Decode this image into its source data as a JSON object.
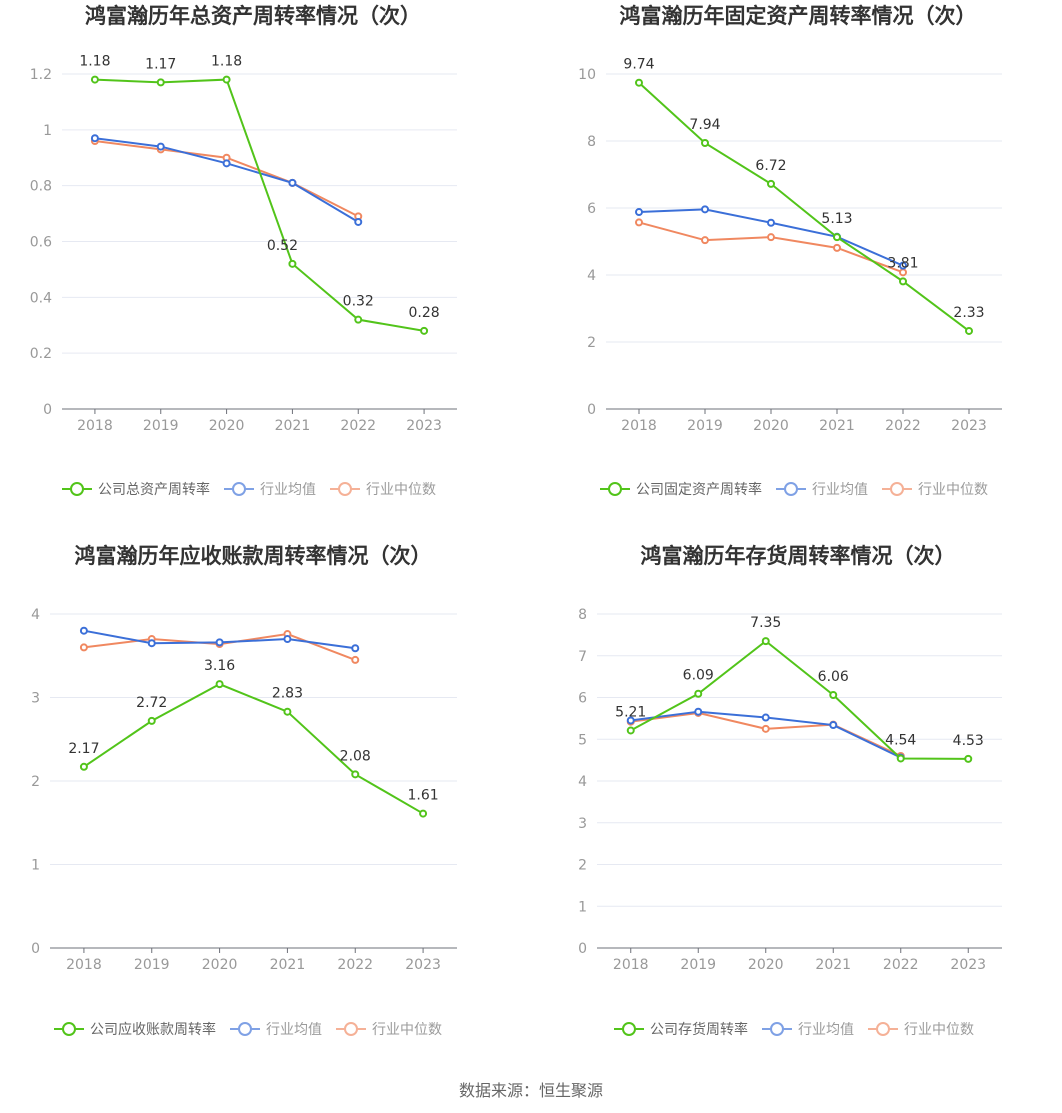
{
  "source": "数据来源：恒生聚源",
  "legend_common": [
    "行业均值",
    "行业中位数"
  ],
  "colors": {
    "company": "#52c41a",
    "avg": "#3b6fd8",
    "median": "#f08860",
    "grid": "#e6e9f2",
    "axis": "#6e7079"
  },
  "chart_data": [
    {
      "type": "line",
      "title": "鸿富瀚历年总资产周转率情况（次）",
      "x": [
        "2018",
        "2019",
        "2020",
        "2021",
        "2022",
        "2023"
      ],
      "yticks": [
        "0",
        "0.2",
        "0.4",
        "0.6",
        "0.8",
        "1",
        "1.2"
      ],
      "ylim": [
        0,
        1.2
      ],
      "series": [
        {
          "name": "公司总资产周转率",
          "role": "company",
          "values": [
            1.18,
            1.17,
            1.18,
            0.52,
            0.32,
            0.28
          ],
          "labels": [
            "1.18",
            "1.17",
            "1.18",
            "0.52",
            "0.32",
            "0.28"
          ]
        },
        {
          "name": "行业均值",
          "role": "avg",
          "values": [
            0.97,
            0.94,
            0.88,
            0.81,
            0.67,
            null
          ]
        },
        {
          "name": "行业中位数",
          "role": "median",
          "values": [
            0.96,
            0.93,
            0.9,
            0.81,
            0.69,
            null
          ]
        }
      ],
      "legend": "bottom"
    },
    {
      "type": "line",
      "title": "鸿富瀚历年固定资产周转率情况（次）",
      "x": [
        "2018",
        "2019",
        "2020",
        "2021",
        "2022",
        "2023"
      ],
      "yticks": [
        "0",
        "2",
        "4",
        "6",
        "8",
        "10"
      ],
      "ylim": [
        0,
        10
      ],
      "series": [
        {
          "name": "公司固定资产周转率",
          "role": "company",
          "values": [
            9.74,
            7.94,
            6.72,
            5.13,
            3.81,
            2.33
          ],
          "labels": [
            "9.74",
            "7.94",
            "6.72",
            "5.13",
            "3.81",
            "2.33"
          ]
        },
        {
          "name": "行业均值",
          "role": "avg",
          "values": [
            5.88,
            5.96,
            5.56,
            5.14,
            4.28,
            null
          ]
        },
        {
          "name": "行业中位数",
          "role": "median",
          "values": [
            5.57,
            5.04,
            5.13,
            4.81,
            4.08,
            null
          ]
        }
      ],
      "legend": "bottom"
    },
    {
      "type": "line",
      "title": "鸿富瀚历年应收账款周转率情况（次）",
      "x": [
        "2018",
        "2019",
        "2020",
        "2021",
        "2022",
        "2023"
      ],
      "yticks": [
        "0",
        "1",
        "2",
        "3",
        "4"
      ],
      "ylim": [
        0,
        4
      ],
      "series": [
        {
          "name": "公司应收账款周转率",
          "role": "company",
          "values": [
            2.17,
            2.72,
            3.16,
            2.83,
            2.08,
            1.61
          ],
          "labels": [
            "2.17",
            "2.72",
            "3.16",
            "2.83",
            "2.08",
            "1.61"
          ]
        },
        {
          "name": "行业均值",
          "role": "avg",
          "values": [
            3.8,
            3.65,
            3.66,
            3.7,
            3.59,
            null
          ]
        },
        {
          "name": "行业中位数",
          "role": "median",
          "values": [
            3.6,
            3.7,
            3.64,
            3.76,
            3.45,
            null
          ]
        }
      ],
      "legend": "bottom"
    },
    {
      "type": "line",
      "title": "鸿富瀚历年存货周转率情况（次）",
      "x": [
        "2018",
        "2019",
        "2020",
        "2021",
        "2022",
        "2023"
      ],
      "yticks": [
        "0",
        "1",
        "2",
        "3",
        "4",
        "5",
        "6",
        "7",
        "8"
      ],
      "ylim": [
        0,
        8
      ],
      "series": [
        {
          "name": "公司存货周转率",
          "role": "company",
          "values": [
            5.21,
            6.09,
            7.35,
            6.06,
            4.54,
            4.53
          ],
          "labels": [
            "5.21",
            "6.09",
            "7.35",
            "6.06",
            "4.54",
            "4.53"
          ]
        },
        {
          "name": "行业均值",
          "role": "avg",
          "values": [
            5.45,
            5.66,
            5.52,
            5.34,
            4.56,
            null
          ]
        },
        {
          "name": "行业中位数",
          "role": "median",
          "values": [
            5.42,
            5.63,
            5.25,
            5.35,
            4.6,
            null
          ]
        }
      ],
      "legend": "bottom"
    }
  ]
}
